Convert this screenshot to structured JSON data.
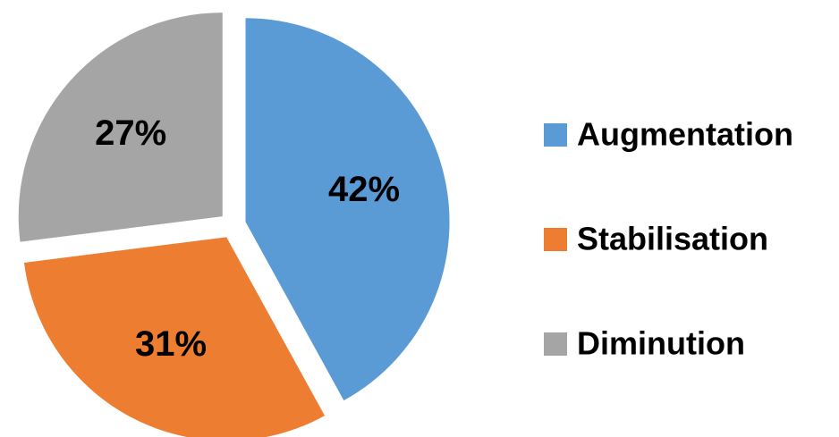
{
  "chart_data": {
    "type": "pie",
    "categories": [
      "Augmentation",
      "Stabilisation",
      "Diminution"
    ],
    "values": [
      42,
      31,
      27
    ],
    "value_labels": [
      "42%",
      "31%",
      "27%"
    ],
    "colors": [
      "#5b9bd5",
      "#ed7d31",
      "#a5a5a5"
    ],
    "legend": "right"
  }
}
